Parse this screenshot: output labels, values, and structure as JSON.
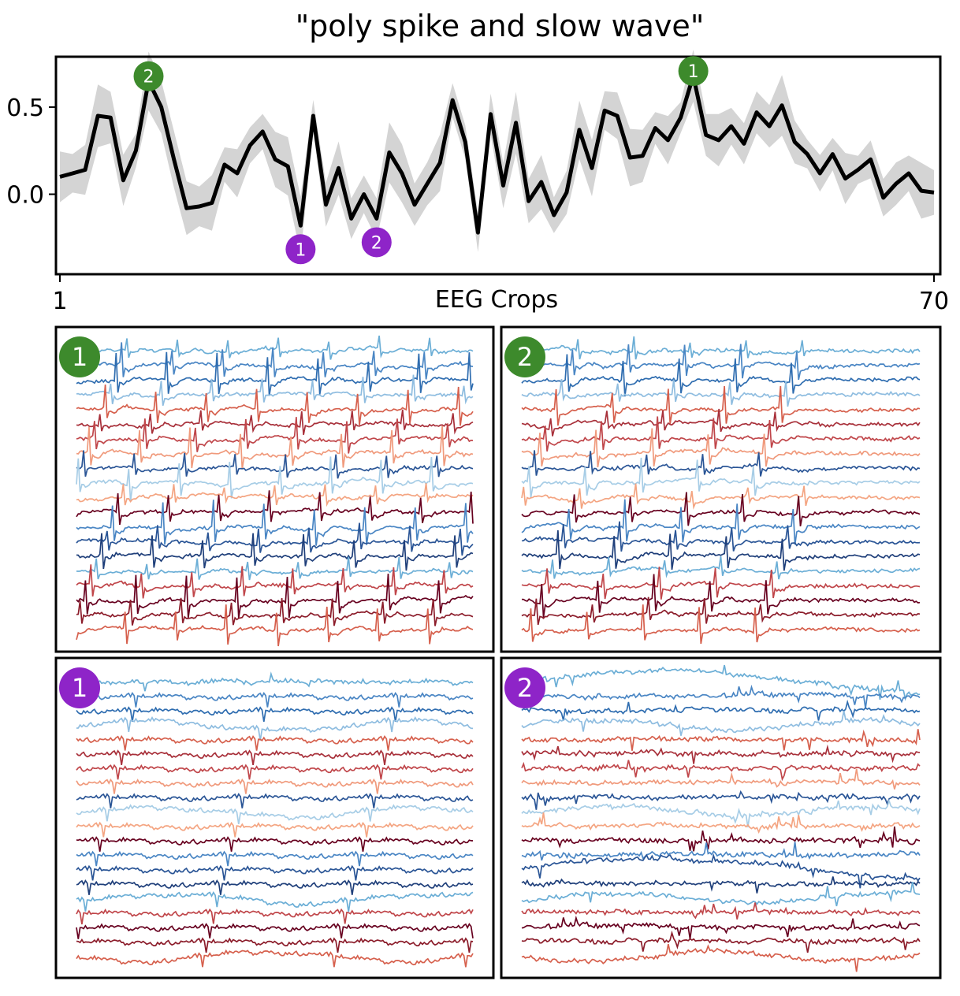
{
  "chart_data": [
    {
      "type": "line",
      "title": "\"poly spike and slow wave\"",
      "xlabel": "EEG Crops",
      "ylabel": "",
      "xlim": [
        1,
        70
      ],
      "ylim": [
        -0.45,
        0.78
      ],
      "x_ticks": [
        "1",
        "70"
      ],
      "y_ticks": [
        "0.5",
        "0.0"
      ],
      "band": "shaded gray band around the mean line",
      "series": [
        {
          "values": [
            0.1,
            0.12,
            0.14,
            0.45,
            0.44,
            0.08,
            0.25,
            0.65,
            0.5,
            0.2,
            -0.08,
            -0.07,
            -0.05,
            0.17,
            0.12,
            0.28,
            0.36,
            0.2,
            0.16,
            -0.18,
            0.45,
            -0.06,
            0.15,
            -0.14,
            0.0,
            -0.14,
            0.24,
            0.12,
            -0.06,
            0.06,
            0.18,
            0.54,
            0.3,
            -0.22,
            0.46,
            0.05,
            0.41,
            -0.04,
            0.07,
            -0.12,
            0.01,
            0.37,
            0.15,
            0.48,
            0.45,
            0.21,
            0.22,
            0.38,
            0.31,
            0.44,
            0.68,
            0.34,
            0.31,
            0.39,
            0.29,
            0.47,
            0.39,
            0.51,
            0.3,
            0.23,
            0.12,
            0.23,
            0.09,
            0.14,
            0.2,
            -0.02,
            0.06,
            0.12,
            0.02,
            0.01
          ]
        }
      ],
      "markers": [
        {
          "label": "2",
          "x": 8,
          "y": 0.65,
          "group": "green",
          "placement": "above"
        },
        {
          "label": "1",
          "x": 51,
          "y": 0.68,
          "group": "green",
          "placement": "above"
        },
        {
          "label": "1",
          "x": 20,
          "y": -0.18,
          "group": "purple",
          "placement": "below"
        },
        {
          "label": "2",
          "x": 26,
          "y": -0.14,
          "group": "purple",
          "placement": "below"
        }
      ]
    },
    {
      "type": "line",
      "description_panels": "EEG crop traces; 24 channels each",
      "panels": [
        {
          "label": "1",
          "group": "green",
          "style": "spike"
        },
        {
          "label": "2",
          "group": "green",
          "style": "spike"
        },
        {
          "label": "1",
          "group": "purple",
          "style": "flat"
        },
        {
          "label": "2",
          "group": "purple",
          "style": "flat"
        }
      ],
      "channel_colors": [
        "#6baed6",
        "#4a86c4",
        "#2f6db0",
        "#8fbde0",
        "#d6604d",
        "#a8303a",
        "#c0464a",
        "#f09a7c",
        "#2a5596",
        "#a7cde6",
        "#f4a582",
        "#67001f",
        "#4a86c4",
        "#2a5596",
        "#1f3f7a",
        "#6baed6",
        "#c0464a",
        "#67001f",
        "#8c1d2b",
        "#d6604d"
      ]
    }
  ],
  "colors": {
    "green": "#3d8a2c",
    "purple": "#8e24c8",
    "line": "#000000",
    "band": "#d4d4d4"
  }
}
